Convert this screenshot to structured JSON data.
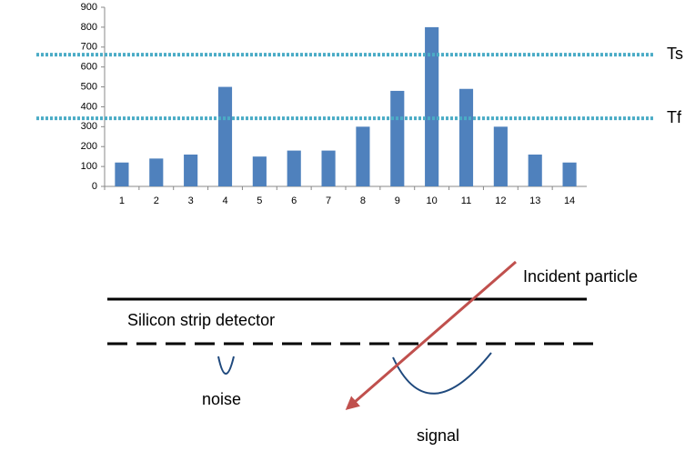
{
  "chart_data": {
    "type": "bar",
    "categories": [
      "1",
      "2",
      "3",
      "4",
      "5",
      "6",
      "7",
      "8",
      "9",
      "10",
      "11",
      "12",
      "13",
      "14"
    ],
    "values": [
      120,
      140,
      160,
      500,
      150,
      180,
      180,
      300,
      480,
      800,
      490,
      300,
      160,
      120
    ],
    "color": "#4f81bd",
    "ylim": [
      0,
      900
    ],
    "yticks": [
      0,
      100,
      200,
      300,
      400,
      500,
      600,
      700,
      800,
      900
    ],
    "thresholds": [
      {
        "label": "Ts",
        "value": 662
      },
      {
        "label": "Tf",
        "value": 342
      }
    ],
    "threshold_color": "#4bacc6"
  },
  "diagram": {
    "particle_label": "Incident particle",
    "detector_label": "Silicon strip detector",
    "noise_label": "noise",
    "signal_label": "signal"
  }
}
